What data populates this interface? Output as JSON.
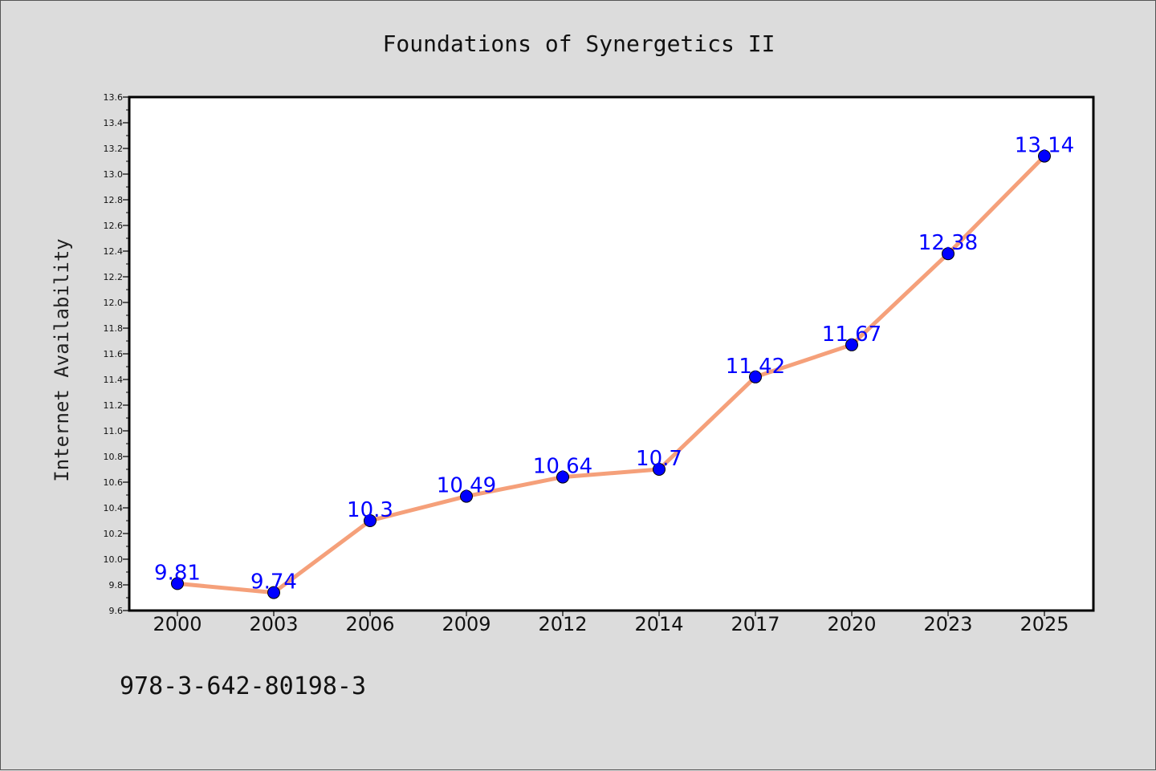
{
  "chart_data": {
    "type": "line",
    "title": "Foundations of Synergetics II",
    "xlabel": "",
    "ylabel": "Internet Availability",
    "categories": [
      "2000",
      "2003",
      "2006",
      "2009",
      "2012",
      "2014",
      "2017",
      "2020",
      "2023",
      "2025"
    ],
    "series": [
      {
        "values": [
          9.81,
          9.74,
          10.3,
          10.49,
          10.64,
          10.7,
          11.42,
          11.67,
          12.38,
          13.14
        ]
      }
    ],
    "data_labels": [
      "9.81",
      "9.74",
      "10.3",
      "10.49",
      "10.64",
      "10.7",
      "11.42",
      "11.67",
      "12.38",
      "13.14"
    ],
    "ylim": [
      9.6,
      13.6
    ],
    "yticks": [
      "9.6",
      "9.8",
      "10.0",
      "10.2",
      "10.4",
      "10.6",
      "10.8",
      "11.0",
      "11.2",
      "11.4",
      "11.6",
      "11.8",
      "12.0",
      "12.2",
      "12.4",
      "12.6",
      "12.8",
      "13.0",
      "13.2",
      "13.4",
      "13.6"
    ],
    "grid": false,
    "legend": "none",
    "line_color": "#f5a07a",
    "marker_color": "#0000ff",
    "label_color": "#0000ff",
    "plot_background": "#ffffff",
    "page_background": "#dcdcdc"
  },
  "footnote": "978-3-642-80198-3"
}
